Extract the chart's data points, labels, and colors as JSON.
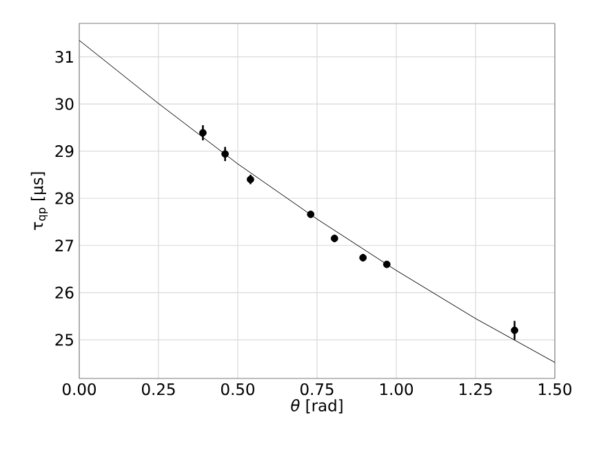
{
  "chart_data": {
    "type": "scatter",
    "xlabel": "*θ* [rad]",
    "ylabel": "τ$_{qp}$ [μs]",
    "xlim": [
      0,
      1.5
    ],
    "ylim": [
      24.18,
      31.71
    ],
    "xticks": [
      {
        "value": 0,
        "label": "0.00"
      },
      {
        "value": 0.25,
        "label": "0.25"
      },
      {
        "value": 0.5,
        "label": "0.50"
      },
      {
        "value": 0.75,
        "label": "0.75"
      },
      {
        "value": 1,
        "label": "1.00"
      },
      {
        "value": 1.25,
        "label": "1.25"
      },
      {
        "value": 1.5,
        "label": "1.50"
      }
    ],
    "yticks": [
      25,
      26,
      27,
      28,
      29,
      30,
      31
    ],
    "grid": true,
    "series": [
      {
        "type": "line",
        "color": "#000000",
        "marker": "none",
        "x": [
          0,
          0.25,
          0.5,
          0.75,
          1.0,
          1.25,
          1.5
        ],
        "values": [
          31.35,
          30.01,
          28.73,
          27.56,
          26.47,
          25.45,
          24.52
        ]
      },
      {
        "type": "scatter",
        "color": "#000000",
        "marker": "circle",
        "x": [
          0.39,
          0.46,
          0.54,
          0.73,
          0.805,
          0.895,
          0.97,
          1.373
        ],
        "values": [
          29.39,
          28.94,
          28.4,
          27.66,
          27.15,
          26.74,
          26.6,
          25.2
        ],
        "errors": [
          0.16,
          0.15,
          0.1,
          0.06,
          0.08,
          0.08,
          0.05,
          0.2
        ]
      }
    ]
  }
}
